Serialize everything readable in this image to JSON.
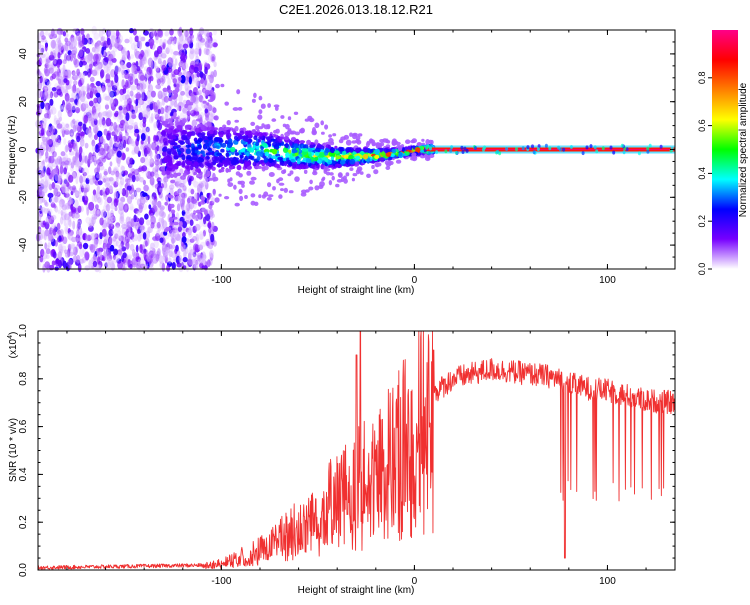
{
  "figure_title": "C2E1.2026.013.18.12.R21",
  "chart_data": [
    {
      "type": "heatmap",
      "name": "spectrogram",
      "xlabel": "Height of straight line (km)",
      "ylabel": "Frequency (Hz)",
      "xlim": [
        -195,
        135
      ],
      "ylim": [
        -50,
        50
      ],
      "xticks": [
        -100,
        0,
        100
      ],
      "yticks": [
        -40,
        -20,
        0,
        20,
        40
      ],
      "xtick_labels": [
        "-100",
        "0",
        "100"
      ],
      "ytick_labels": [
        "-40",
        "-20",
        "0",
        "20",
        "40"
      ],
      "colorbar": {
        "label": "Normalized spectral amplitude",
        "range": [
          0,
          1
        ],
        "ticks": [
          0,
          0.2,
          0.4,
          0.6,
          0.8
        ],
        "tick_labels": [
          "0.0",
          "0.2",
          "0.4",
          "0.6",
          "0.8"
        ],
        "colors": [
          "#ffffff",
          "#7700ff",
          "#0000ff",
          "#00ffff",
          "#00ff00",
          "#ffff00",
          "#ff7f00",
          "#ff0000",
          "#ff0088"
        ]
      },
      "features": {
        "noise_region_x": [
          -195,
          -105
        ],
        "carrier_frequency_hz": 0,
        "carrier_stable_from_km": 5
      }
    },
    {
      "type": "line",
      "name": "snr",
      "xlabel": "Height of straight line (km)",
      "ylabel": "SNR (10 * v/v)",
      "multiplier_label": "(x10",
      "multiplier_exp": "4",
      "xlim": [
        -195,
        135
      ],
      "ylim": [
        0,
        1.0
      ],
      "xticks": [
        -100,
        0,
        100
      ],
      "yticks": [
        0,
        0.2,
        0.4,
        0.6,
        0.8,
        1.0
      ],
      "xtick_labels": [
        "-100",
        "0",
        "100"
      ],
      "ytick_labels": [
        "0.0",
        "0.2",
        "0.4",
        "0.6",
        "0.8",
        "1.0"
      ],
      "color": "#f03030",
      "envelope": {
        "x": [
          -195,
          -110,
          -100,
          -90,
          -80,
          -70,
          -60,
          -50,
          -40,
          -30,
          -20,
          -10,
          0,
          10,
          20,
          30,
          40,
          50,
          60,
          70,
          80,
          90,
          100,
          110,
          120,
          135
        ],
        "y": [
          0.01,
          0.02,
          0.03,
          0.06,
          0.09,
          0.14,
          0.2,
          0.26,
          0.32,
          0.38,
          0.44,
          0.52,
          0.64,
          0.74,
          0.8,
          0.82,
          0.84,
          0.83,
          0.82,
          0.81,
          0.78,
          0.76,
          0.75,
          0.73,
          0.71,
          0.7
        ]
      },
      "peaks": [
        {
          "x": -28,
          "y": 1.0
        },
        {
          "x": -30,
          "y": 0.9
        },
        {
          "x": 10,
          "y": 0.92
        }
      ],
      "dropouts": [
        {
          "x": 78,
          "y": 0.05
        }
      ]
    }
  ]
}
